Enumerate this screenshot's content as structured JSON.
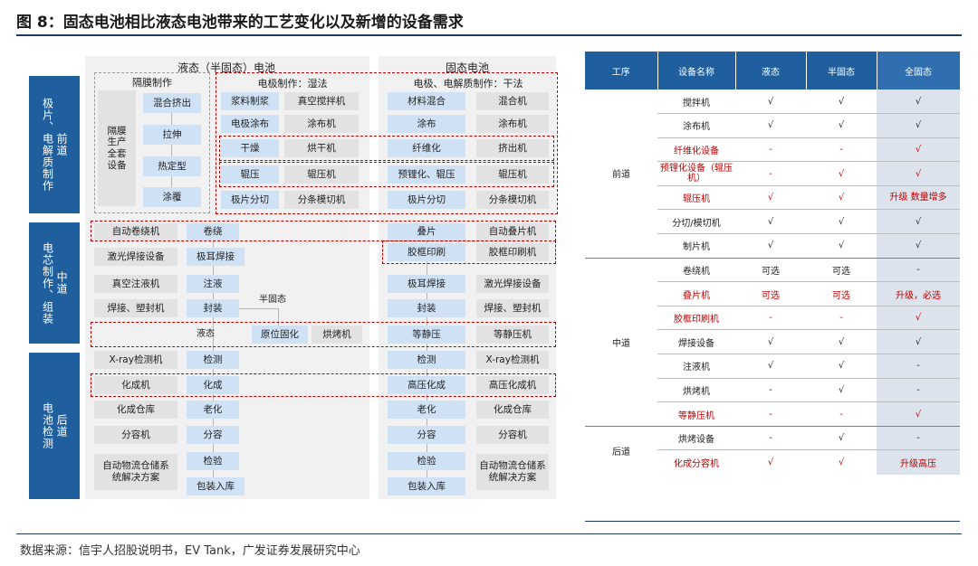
{
  "figure_title": "图  8：固态电池相比液态电池带来的工艺变化以及新增的设备需求",
  "source": "数据来源：信宇人招股说明书，EV Tank，广发证券发展研究中心",
  "colors": {
    "stage_blue": "#1f5f9e",
    "box_blue": "#cfe2f5",
    "box_gray": "#e2e2e2",
    "highlight_red": "#c00000"
  },
  "diagram": {
    "stages": [
      {
        "label1": "极片、电解质制作",
        "label2": "前道"
      },
      {
        "label1": "电芯制作、组装",
        "label2": "中道"
      },
      {
        "label1": "电池检测",
        "label2": "后道"
      }
    ],
    "liquid_header": "液态（半固态）电池",
    "solid_header": "固态电池",
    "separator_header": "隔膜制作",
    "separator_equipment": "隔膜生产全套设备",
    "separator_steps": [
      "混合挤出",
      "拉伸",
      "热定型",
      "涂覆"
    ],
    "electrode_wet_header": "电极制作：湿法",
    "electrode_dry_header": "电极、电解质制作：干法",
    "wet_rows": [
      [
        "浆料制浆",
        "真空搅拌机"
      ],
      [
        "电极涂布",
        "涂布机"
      ],
      [
        "干燥",
        "烘干机"
      ],
      [
        "辊压",
        "辊压机"
      ],
      [
        "极片分切",
        "分条模切机"
      ]
    ],
    "dry_rows": [
      [
        "材料混合",
        "混合机"
      ],
      [
        "涂布",
        "涂布机"
      ],
      [
        "纤维化",
        "挤出机"
      ],
      [
        "预锂化、辊压",
        "辊压机"
      ],
      [
        "极片分切",
        "分条模切机"
      ]
    ],
    "mid_liquid_rows": [
      [
        "自动卷绕机",
        "卷绕"
      ],
      [
        "激光焊接设备",
        "极耳焊接"
      ],
      [
        "真空注液机",
        "注液"
      ],
      [
        "焊接、塑封机",
        "封装"
      ]
    ],
    "semi_solid_label": "半固态",
    "liquid_label": "液态",
    "insitu_curing": "原位固化",
    "oven": "烘烤机",
    "mid_solid_rows": [
      [
        "叠片",
        "自动叠片机"
      ],
      [
        "胶框印刷",
        "胶框印刷机"
      ],
      [
        "极耳焊接",
        "激光焊接设备"
      ],
      [
        "封装",
        "焊接、塑封机"
      ],
      [
        "等静压",
        "等静压机"
      ]
    ],
    "back_liquid_rows": [
      [
        "X-ray检测机",
        "检测"
      ],
      [
        "化成机",
        "化成"
      ],
      [
        "化成仓库",
        "老化"
      ],
      [
        "分容机",
        "分容"
      ],
      [
        "自动物流仓储系统解决方案",
        "检验"
      ]
    ],
    "back_liquid_final": "包装入库",
    "back_solid_rows": [
      [
        "检测",
        "X-ray检测机"
      ],
      [
        "高压化成",
        "高压化成机"
      ],
      [
        "老化",
        "化成仓库"
      ],
      [
        "分容",
        "分容机"
      ],
      [
        "检验",
        "自动物流仓储系统解决方案"
      ]
    ],
    "back_solid_final": "包装入库"
  },
  "table": {
    "headers": [
      "工序",
      "设备名称",
      "液态",
      "半固态",
      "全固态"
    ],
    "groups": [
      {
        "process": "前道",
        "rows": [
          {
            "name": "搅拌机",
            "liquid": "√",
            "semi": "√",
            "full": "√",
            "red": false
          },
          {
            "name": "涂布机",
            "liquid": "√",
            "semi": "√",
            "full": "√",
            "red": false
          },
          {
            "name": "纤维化设备",
            "liquid": "-",
            "semi": "-",
            "full": "√",
            "red": true
          },
          {
            "name": "预锂化设备（辊压机）",
            "liquid": "-",
            "semi": "√",
            "full": "√",
            "red": true
          },
          {
            "name": "辊压机",
            "liquid": "√",
            "semi": "√",
            "full": "升级 数量增多",
            "red": true
          },
          {
            "name": "分切/模切机",
            "liquid": "√",
            "semi": "√",
            "full": "√",
            "red": false
          },
          {
            "name": "制片机",
            "liquid": "√",
            "semi": "√",
            "full": "√",
            "red": false
          }
        ]
      },
      {
        "process": "中道",
        "rows": [
          {
            "name": "卷绕机",
            "liquid": "可选",
            "semi": "可选",
            "full": "-",
            "red": false
          },
          {
            "name": "叠片机",
            "liquid": "可选",
            "semi": "可选",
            "full": "升级，必选",
            "red": true
          },
          {
            "name": "胶框印刷机",
            "liquid": "-",
            "semi": "-",
            "full": "√",
            "red": true
          },
          {
            "name": "焊接设备",
            "liquid": "√",
            "semi": "√",
            "full": "√",
            "red": false
          },
          {
            "name": "注液机",
            "liquid": "√",
            "semi": "√",
            "full": "-",
            "red": false
          },
          {
            "name": "烘烤机",
            "liquid": "-",
            "semi": "√",
            "full": "-",
            "red": false
          },
          {
            "name": "等静压机",
            "liquid": "-",
            "semi": "-",
            "full": "√",
            "red": true
          }
        ]
      },
      {
        "process": "后道",
        "rows": [
          {
            "name": "烘烤设备",
            "liquid": "-",
            "semi": "√",
            "full": "-",
            "red": false
          },
          {
            "name": "化成分容机",
            "liquid": "√",
            "semi": "√",
            "full": "升级高压",
            "red": true
          }
        ]
      }
    ]
  }
}
